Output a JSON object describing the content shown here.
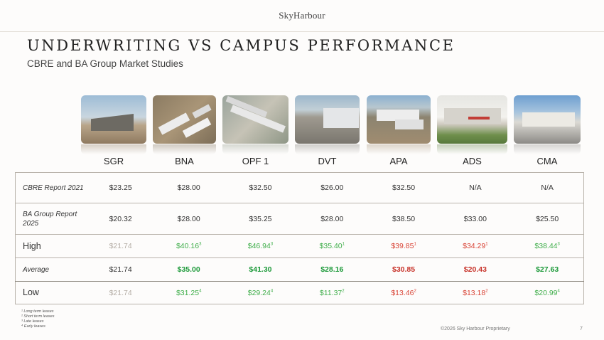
{
  "header": {
    "logo": "SkyHarbour"
  },
  "title": "UNDERWRITING VS CAMPUS PERFORMANCE",
  "subtitle": "CBRE and BA Group Market Studies",
  "columns": [
    "SGR",
    "BNA",
    "OPF 1",
    "DVT",
    "APA",
    "ADS",
    "CMA"
  ],
  "rows": [
    {
      "label": "CBRE Report 2021",
      "values": [
        "$23.25",
        "$28.00",
        "$32.50",
        "$26.00",
        "$32.50",
        "N/A",
        "N/A"
      ],
      "sups": [
        "",
        "",
        "",
        "",
        "",
        "",
        ""
      ]
    },
    {
      "label": "BA Group Report 2025",
      "values": [
        "$20.32",
        "$28.00",
        "$35.25",
        "$28.00",
        "$38.50",
        "$33.00",
        "$25.50"
      ],
      "sups": [
        "",
        "",
        "",
        "",
        "",
        "",
        ""
      ]
    },
    {
      "label": "High",
      "values": [
        "$21.74",
        "$40.16",
        "$46.94",
        "$35.40",
        "$39.85",
        "$34.29",
        "$38.44"
      ],
      "sups": [
        "",
        "3",
        "3",
        "1",
        "1",
        "1",
        "3"
      ]
    },
    {
      "label": "Average",
      "values": [
        "$21.74",
        "$35.00",
        "$41.30",
        "$28.16",
        "$30.85",
        "$20.43",
        "$27.63"
      ],
      "sups": [
        "",
        "",
        "",
        "",
        "",
        "",
        ""
      ]
    },
    {
      "label": "Low",
      "values": [
        "$21.74",
        "$31.25",
        "$29.24",
        "$11.37",
        "$13.46",
        "$13.18",
        "$20.99"
      ],
      "sups": [
        "",
        "4",
        "4",
        "2",
        "2",
        "2",
        "4"
      ]
    }
  ],
  "footnotes": [
    "¹ Long term leases",
    "² Short term leases",
    "³ Late leases",
    "⁴ Early leases"
  ],
  "footer": {
    "copyright": "©2026 Sky Harbour Proprietary",
    "page": "7"
  },
  "colors": {
    "green": "#3fae4a",
    "red": "#d94436",
    "pale": "#b5aea6"
  },
  "images": [
    "hangar-photo-sgr",
    "hangar-photo-bna",
    "hangar-photo-opf1",
    "hangar-photo-dvt",
    "hangar-photo-apa",
    "hangar-photo-ads",
    "hangar-photo-cma"
  ]
}
